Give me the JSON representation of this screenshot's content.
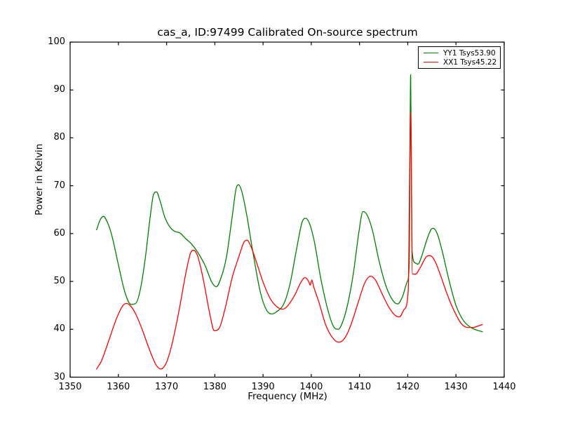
{
  "chart_data": {
    "type": "line",
    "title": "cas_a, ID:97499 Calibrated On-source spectrum",
    "xlabel": "Frequency (MHz)",
    "ylabel": "Power in Kelvin",
    "xlim": [
      1350,
      1440
    ],
    "ylim": [
      30,
      100
    ],
    "xticks": [
      1350,
      1360,
      1370,
      1380,
      1390,
      1400,
      1410,
      1420,
      1430,
      1440
    ],
    "yticks": [
      30,
      40,
      50,
      60,
      70,
      80,
      90,
      100
    ],
    "grid": false,
    "background": "#ffffff",
    "axis_color": "#000000",
    "legend_position": "upper right",
    "series": [
      {
        "name": "YY1 Tsys53.90",
        "color": "#008000",
        "points": [
          [
            1355.5,
            60.8
          ],
          [
            1356.2,
            62.8
          ],
          [
            1356.9,
            63.6
          ],
          [
            1357.7,
            62.4
          ],
          [
            1358.6,
            59.8
          ],
          [
            1360.0,
            53.5
          ],
          [
            1361.4,
            47.6
          ],
          [
            1362.6,
            45.2
          ],
          [
            1363.6,
            45.4
          ],
          [
            1364.6,
            48.5
          ],
          [
            1365.6,
            55.0
          ],
          [
            1366.6,
            63.5
          ],
          [
            1367.3,
            68.2
          ],
          [
            1367.9,
            68.7
          ],
          [
            1368.6,
            67.0
          ],
          [
            1369.6,
            63.5
          ],
          [
            1370.6,
            61.5
          ],
          [
            1371.6,
            60.5
          ],
          [
            1372.8,
            60.1
          ],
          [
            1374.0,
            58.9
          ],
          [
            1375.2,
            57.8
          ],
          [
            1376.5,
            56.0
          ],
          [
            1378.0,
            53.3
          ],
          [
            1379.4,
            49.8
          ],
          [
            1380.3,
            48.9
          ],
          [
            1381.3,
            50.8
          ],
          [
            1382.4,
            55.0
          ],
          [
            1383.6,
            63.5
          ],
          [
            1384.4,
            69.3
          ],
          [
            1384.9,
            70.2
          ],
          [
            1385.6,
            68.8
          ],
          [
            1386.6,
            64.0
          ],
          [
            1388.0,
            55.5
          ],
          [
            1389.5,
            47.5
          ],
          [
            1390.8,
            43.9
          ],
          [
            1391.8,
            43.2
          ],
          [
            1393.0,
            43.8
          ],
          [
            1394.3,
            45.3
          ],
          [
            1395.6,
            49.5
          ],
          [
            1396.9,
            56.5
          ],
          [
            1398.1,
            62.4
          ],
          [
            1398.8,
            63.2
          ],
          [
            1399.6,
            62.2
          ],
          [
            1400.6,
            58.5
          ],
          [
            1402.0,
            50.5
          ],
          [
            1403.5,
            43.8
          ],
          [
            1404.8,
            40.3
          ],
          [
            1405.6,
            40.0
          ],
          [
            1406.6,
            41.8
          ],
          [
            1407.6,
            45.5
          ],
          [
            1408.7,
            51.5
          ],
          [
            1409.9,
            60.5
          ],
          [
            1410.7,
            64.6
          ],
          [
            1411.5,
            64.0
          ],
          [
            1412.6,
            61.0
          ],
          [
            1414.0,
            54.5
          ],
          [
            1415.5,
            49.0
          ],
          [
            1417.0,
            45.9
          ],
          [
            1417.9,
            45.3
          ],
          [
            1418.9,
            46.8
          ],
          [
            1419.9,
            50.0
          ],
          [
            1420.3,
            53.5
          ],
          [
            1420.6,
            93.2
          ],
          [
            1420.9,
            56.5
          ],
          [
            1421.5,
            53.9
          ],
          [
            1422.1,
            53.6
          ],
          [
            1422.9,
            55.3
          ],
          [
            1423.9,
            58.5
          ],
          [
            1424.8,
            60.8
          ],
          [
            1425.3,
            61.1
          ],
          [
            1426.1,
            60.0
          ],
          [
            1427.1,
            56.5
          ],
          [
            1428.5,
            50.5
          ],
          [
            1430.0,
            45.0
          ],
          [
            1431.5,
            41.9
          ],
          [
            1432.9,
            40.5
          ],
          [
            1434.1,
            39.9
          ],
          [
            1435.5,
            39.5
          ]
        ]
      },
      {
        "name": "XX1 Tsys45.22",
        "color": "#ff0000",
        "points": [
          [
            1355.5,
            31.7
          ],
          [
            1356.5,
            33.4
          ],
          [
            1358.0,
            37.6
          ],
          [
            1359.6,
            42.2
          ],
          [
            1360.9,
            44.9
          ],
          [
            1361.7,
            45.4
          ],
          [
            1362.6,
            44.8
          ],
          [
            1363.6,
            43.2
          ],
          [
            1365.0,
            39.8
          ],
          [
            1366.5,
            35.6
          ],
          [
            1367.8,
            32.6
          ],
          [
            1368.8,
            31.7
          ],
          [
            1369.9,
            32.9
          ],
          [
            1371.1,
            36.8
          ],
          [
            1372.6,
            44.0
          ],
          [
            1374.1,
            52.3
          ],
          [
            1375.0,
            56.0
          ],
          [
            1375.6,
            56.5
          ],
          [
            1376.4,
            55.4
          ],
          [
            1377.6,
            50.5
          ],
          [
            1378.9,
            43.5
          ],
          [
            1379.9,
            39.7
          ],
          [
            1380.9,
            40.2
          ],
          [
            1382.1,
            44.2
          ],
          [
            1383.6,
            50.8
          ],
          [
            1385.0,
            55.2
          ],
          [
            1386.1,
            58.3
          ],
          [
            1386.7,
            58.6
          ],
          [
            1387.6,
            57.0
          ],
          [
            1388.9,
            53.2
          ],
          [
            1390.1,
            49.6
          ],
          [
            1391.5,
            46.4
          ],
          [
            1393.0,
            44.6
          ],
          [
            1394.1,
            44.2
          ],
          [
            1395.1,
            44.9
          ],
          [
            1396.6,
            47.2
          ],
          [
            1397.9,
            49.9
          ],
          [
            1398.7,
            50.8
          ],
          [
            1399.4,
            50.1
          ],
          [
            1399.8,
            49.2
          ],
          [
            1400.1,
            50.3
          ],
          [
            1400.5,
            48.9
          ],
          [
            1401.6,
            45.6
          ],
          [
            1403.0,
            40.9
          ],
          [
            1404.6,
            38.0
          ],
          [
            1405.7,
            37.3
          ],
          [
            1406.9,
            38.1
          ],
          [
            1408.1,
            40.6
          ],
          [
            1409.6,
            45.2
          ],
          [
            1411.1,
            49.7
          ],
          [
            1412.3,
            51.1
          ],
          [
            1413.3,
            50.3
          ],
          [
            1414.6,
            47.6
          ],
          [
            1416.1,
            44.6
          ],
          [
            1417.4,
            42.9
          ],
          [
            1418.3,
            42.6
          ],
          [
            1419.3,
            44.2
          ],
          [
            1420.1,
            48.0
          ],
          [
            1420.6,
            85.3
          ],
          [
            1420.95,
            51.6
          ],
          [
            1421.6,
            51.5
          ],
          [
            1422.6,
            52.9
          ],
          [
            1423.9,
            55.2
          ],
          [
            1424.6,
            55.4
          ],
          [
            1425.6,
            54.3
          ],
          [
            1426.9,
            51.0
          ],
          [
            1428.1,
            47.5
          ],
          [
            1429.6,
            43.9
          ],
          [
            1431.1,
            41.2
          ],
          [
            1432.4,
            40.4
          ],
          [
            1433.6,
            40.4
          ],
          [
            1434.6,
            40.7
          ],
          [
            1435.5,
            41.0
          ]
        ]
      }
    ]
  }
}
